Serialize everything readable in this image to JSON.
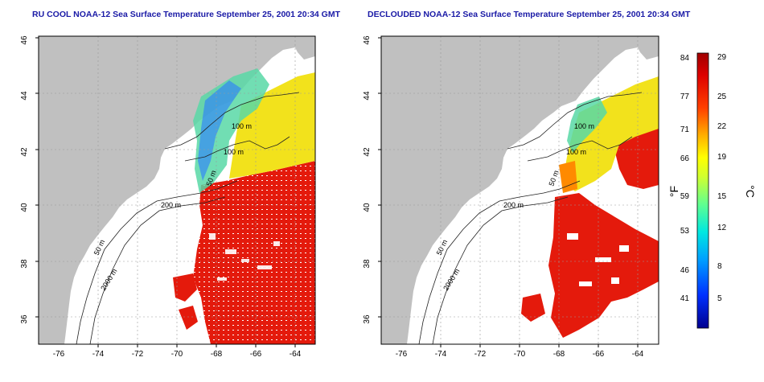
{
  "left_panel": {
    "title": "RU COOL NOAA-12 Sea Surface Temperature September 25, 2001 20:34 GMT",
    "x_ticks": [
      "-76",
      "-74",
      "-72",
      "-70",
      "-68",
      "-66",
      "-64"
    ],
    "y_ticks": [
      "46",
      "44",
      "42",
      "40",
      "38",
      "36"
    ],
    "contour_labels": [
      "100 m",
      "100 m",
      "200 m",
      "50 m",
      "2000 m",
      "50 m"
    ]
  },
  "right_panel": {
    "title": "DECLOUDED NOAA-12 Sea Surface Temperature September 25, 2001 20:34 GMT",
    "x_ticks": [
      "-76",
      "-74",
      "-72",
      "-70",
      "-68",
      "-66",
      "-64"
    ],
    "y_ticks": [
      "46",
      "44",
      "42",
      "40",
      "38",
      "36"
    ],
    "contour_labels": [
      "100 m",
      "100 m",
      "200 m",
      "50 m",
      "2000 m",
      "50 m"
    ]
  },
  "colorbar": {
    "fahrenheit_label": "°F",
    "celsius_label": "°C",
    "fahrenheit_ticks": [
      "84",
      "77",
      "71",
      "66",
      "59",
      "53",
      "46",
      "41"
    ],
    "celsius_ticks": [
      "29",
      "25",
      "22",
      "19",
      "15",
      "12",
      "8",
      "5"
    ],
    "colors": [
      "#00008f",
      "#0020ff",
      "#0090ff",
      "#00e0ff",
      "#40ffb0",
      "#b0ff40",
      "#ffff00",
      "#ffb000",
      "#ff5000",
      "#e00000",
      "#a00000"
    ]
  },
  "colors": {
    "land": "#c0c0c0",
    "title": "#1a1aa6",
    "warm": "#e41a0c",
    "mid": "#f5e51f",
    "cool": "#52d9a0"
  }
}
